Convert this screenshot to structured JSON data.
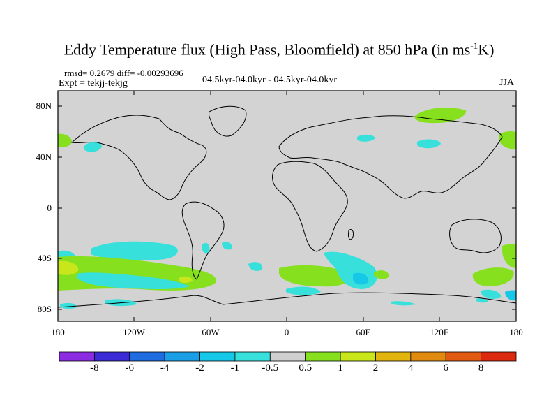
{
  "title": "Eddy Temperature flux (High Pass, Bloomfield) at 850 hPa (in ms",
  "title_sup": "-1",
  "title_end": "K)",
  "stats": "rmsd= 0.2679 diff= -0.00293696",
  "expt": "Expt = tekjj-tekjg",
  "period": "04.5kyr-04.0kyr - 04.5kyr-04.0kyr",
  "season": "JJA",
  "lat_labels": [
    "80N",
    "40N",
    "0",
    "40S",
    "80S"
  ],
  "lon_labels": [
    "180",
    "120W",
    "60W",
    "0",
    "60E",
    "120E",
    "180"
  ],
  "colorbar": {
    "colors": [
      "#8b2be2",
      "#3a2bd6",
      "#1f6be0",
      "#1a9fe6",
      "#16c8e8",
      "#38e0dc",
      "#cfcfcf",
      "#86e01e",
      "#c8e61a",
      "#e2b40e",
      "#e08a10",
      "#e05a12",
      "#dc2a10"
    ],
    "labels": [
      "-8",
      "-6",
      "-4",
      "-2",
      "-1",
      "-0.5",
      "0.5",
      "1",
      "2",
      "4",
      "6",
      "8"
    ]
  },
  "colors": {
    "land_sea_background": "#d3d3d3",
    "cyan": "#38e0dc",
    "light_blue": "#16c8e8",
    "green": "#86e01e",
    "yellow_green": "#c8e61a"
  }
}
